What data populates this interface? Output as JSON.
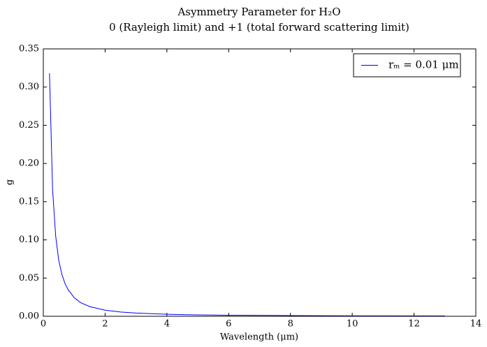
{
  "chart_data": {
    "type": "line",
    "title": "Asymmetry Parameter for H₂O",
    "subtitle": "0 (Rayleigh limit) and +1 (total forward scattering limit)",
    "x_label": "Wavelength (μm)",
    "y_label": "g",
    "x": [
      0.2,
      0.3,
      0.4,
      0.5,
      0.6,
      0.7,
      0.8,
      1.0,
      1.2,
      1.5,
      2,
      2.5,
      3,
      4,
      5,
      6,
      8,
      10,
      13
    ],
    "series": [
      {
        "name": "rₘ = 0.01 μm",
        "color": "#0000ff",
        "values": [
          0.318,
          0.166,
          0.105,
          0.073,
          0.055,
          0.043,
          0.035,
          0.0243,
          0.018,
          0.0127,
          0.008,
          0.0056,
          0.0042,
          0.0026,
          0.0018,
          0.0014,
          0.0009,
          0.0006,
          0.0004
        ]
      }
    ],
    "xlim": [
      0,
      14
    ],
    "ylim": [
      0,
      0.35
    ],
    "xticks": [
      0,
      2,
      4,
      6,
      8,
      10,
      12,
      14
    ],
    "yticks": [
      {
        "value": 0,
        "label": "0.00"
      },
      {
        "value": 0.05,
        "label": "0.05"
      },
      {
        "value": 0.1,
        "label": "0.10"
      },
      {
        "value": 0.15,
        "label": "0.15"
      },
      {
        "value": 0.2,
        "label": "0.20"
      },
      {
        "value": 0.25,
        "label": "0.25"
      },
      {
        "value": 0.3,
        "label": "0.30"
      },
      {
        "value": 0.35,
        "label": "0.35"
      }
    ],
    "legend": "upper right",
    "grid": false
  }
}
